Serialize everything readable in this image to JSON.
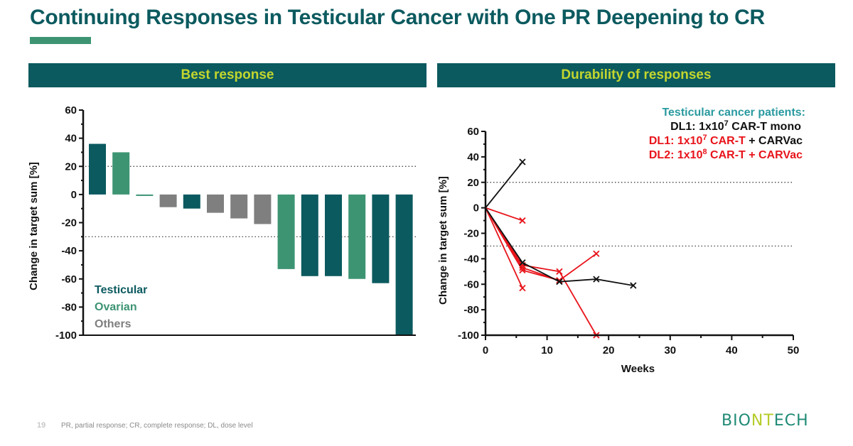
{
  "title": "Continuing Responses in Testicular Cancer with One PR Deepening to CR",
  "sections": {
    "left_header": "Best response",
    "right_header": "Durability of responses"
  },
  "footer": {
    "page_number": "19",
    "note": "PR, partial response; CR, complete response; DL, dose level",
    "logo": {
      "part1": "BIO",
      "part2": "NT",
      "part3": "ECH"
    }
  },
  "colors": {
    "teal": "#0b5a5f",
    "green": "#3d9473",
    "gray": "#7f7f7f",
    "red": "#e8141b",
    "black": "#111111",
    "header_text": "#c3d62e",
    "legend_title": "#2a9aa0"
  },
  "chart_data": [
    {
      "type": "bar",
      "title": "Best response",
      "xlabel": "",
      "ylabel": "Change in target sum [%]",
      "ylim": [
        -100,
        60
      ],
      "yticks": [
        60,
        40,
        20,
        0,
        -20,
        -40,
        -60,
        -80,
        -100
      ],
      "reference_lines": [
        20,
        -30
      ],
      "grid": false,
      "legend_position": "bottom-left",
      "legend": [
        {
          "label": "Testicular",
          "group": "testicular"
        },
        {
          "label": "Ovarian",
          "group": "ovarian"
        },
        {
          "label": "Others",
          "group": "others"
        }
      ],
      "bars": [
        {
          "group": "testicular",
          "value": 36
        },
        {
          "group": "ovarian",
          "value": 30
        },
        {
          "group": "ovarian",
          "value": -1
        },
        {
          "group": "others",
          "value": -9
        },
        {
          "group": "testicular",
          "value": -10
        },
        {
          "group": "others",
          "value": -13
        },
        {
          "group": "others",
          "value": -17
        },
        {
          "group": "others",
          "value": -21
        },
        {
          "group": "ovarian",
          "value": -53
        },
        {
          "group": "testicular",
          "value": -58
        },
        {
          "group": "testicular",
          "value": -58
        },
        {
          "group": "ovarian",
          "value": -60
        },
        {
          "group": "testicular",
          "value": -63
        },
        {
          "group": "testicular",
          "value": -100
        }
      ]
    },
    {
      "type": "line",
      "title": "Durability of responses",
      "xlabel": "Weeks",
      "ylabel": "Change in target sum [%]",
      "xlim": [
        0,
        50
      ],
      "ylim": [
        -100,
        60
      ],
      "xticks": [
        0,
        10,
        20,
        30,
        40,
        50
      ],
      "yticks": [
        60,
        40,
        20,
        0,
        -20,
        -40,
        -60,
        -80,
        -100
      ],
      "reference_lines": [
        20,
        -30
      ],
      "grid": false,
      "legend_position": "top-right",
      "legend_title": "Testicular cancer patients:",
      "legend": [
        {
          "label": "DL1: 1x10",
          "sup": "7",
          "suffix": " CAR-T mono",
          "suffix2": "",
          "color": "black"
        },
        {
          "label": "DL1: 1x10",
          "sup": "7",
          "suffix": " CAR-T",
          "suffix2": " + CARVac",
          "color": "red"
        },
        {
          "label": "DL2: 1x10",
          "sup": "8",
          "suffix": " CAR-T + CARVac",
          "suffix2": "",
          "color": "red"
        }
      ],
      "series": [
        {
          "name": "DL1 CAR-T mono patient 1",
          "color": "black",
          "x": [
            0,
            6
          ],
          "y": [
            0,
            36
          ]
        },
        {
          "name": "DL1 CAR-T mono patient 2",
          "color": "black",
          "x": [
            0,
            6,
            12,
            18,
            24
          ],
          "y": [
            0,
            -43,
            -58,
            -56,
            -61
          ]
        },
        {
          "name": "CAR-T + CARVac patient 1",
          "color": "red",
          "x": [
            0,
            6
          ],
          "y": [
            0,
            -10
          ]
        },
        {
          "name": "CAR-T + CARVac patient 2",
          "color": "red",
          "x": [
            0,
            6
          ],
          "y": [
            0,
            -63
          ]
        },
        {
          "name": "CAR-T + CARVac patient 3",
          "color": "red",
          "x": [
            0,
            6,
            12,
            18
          ],
          "y": [
            0,
            -45,
            -50,
            -100
          ]
        },
        {
          "name": "CAR-T + CARVac patient 4",
          "color": "red",
          "x": [
            0,
            6,
            12,
            18
          ],
          "y": [
            0,
            -47,
            -57,
            -36
          ]
        },
        {
          "name": "CAR-T + CARVac patient 5",
          "color": "red",
          "x": [
            0,
            6,
            12
          ],
          "y": [
            0,
            -49,
            -57
          ]
        }
      ]
    }
  ]
}
